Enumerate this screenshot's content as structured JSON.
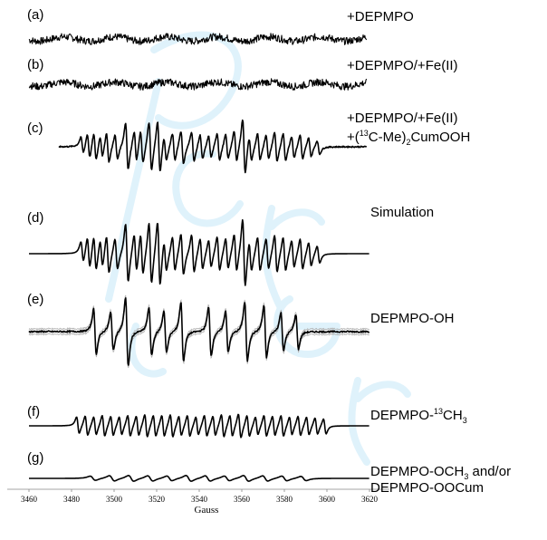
{
  "chart_data": {
    "type": "line",
    "title": "",
    "xlabel": "Gauss",
    "ylabel": "",
    "xlim": [
      3460,
      3620
    ],
    "xticks": [
      3460,
      3480,
      3500,
      3520,
      3540,
      3560,
      3580,
      3600,
      3620
    ],
    "grid": false,
    "legend": "none",
    "series": [
      {
        "letter": "(a)",
        "label": "+DEPMPO",
        "kind": "noise",
        "centers": [],
        "amps": []
      },
      {
        "letter": "(b)",
        "label": "+DEPMPO/+Fe(II)",
        "kind": "noise",
        "centers": [],
        "amps": []
      },
      {
        "letter": "(c)",
        "label": "+DEPMPO/+Fe(II)",
        "label2_parts": [
          "+(",
          "13",
          "C-Me)",
          "2",
          "CumOOH"
        ],
        "kind": "spectrum",
        "centers": [
          3485,
          3488,
          3491,
          3494,
          3497,
          3501,
          3506,
          3510,
          3513,
          3517,
          3521,
          3524,
          3528,
          3532,
          3537,
          3541,
          3545,
          3549,
          3553,
          3557,
          3561,
          3564,
          3568,
          3572,
          3576,
          3580,
          3584,
          3588,
          3592,
          3596
        ],
        "amps": [
          0.3,
          0.45,
          0.5,
          0.4,
          0.55,
          0.45,
          0.85,
          0.55,
          0.6,
          0.9,
          0.95,
          0.45,
          0.5,
          0.6,
          0.55,
          0.45,
          0.4,
          0.5,
          0.45,
          0.55,
          1.0,
          0.45,
          0.5,
          0.45,
          0.55,
          0.5,
          0.4,
          0.45,
          0.35,
          0.25
        ]
      },
      {
        "letter": "(d)",
        "label": "Simulation",
        "kind": "spectrum",
        "centers": [
          3485,
          3488,
          3491,
          3494,
          3497,
          3501,
          3506,
          3510,
          3513,
          3517,
          3521,
          3524,
          3528,
          3532,
          3537,
          3541,
          3545,
          3549,
          3553,
          3557,
          3561,
          3564,
          3568,
          3572,
          3576,
          3580,
          3584,
          3588,
          3592,
          3596
        ],
        "amps": [
          0.3,
          0.45,
          0.5,
          0.4,
          0.55,
          0.45,
          0.85,
          0.55,
          0.6,
          0.9,
          0.95,
          0.45,
          0.5,
          0.6,
          0.55,
          0.45,
          0.4,
          0.5,
          0.45,
          0.55,
          1.0,
          0.45,
          0.5,
          0.45,
          0.55,
          0.5,
          0.4,
          0.45,
          0.35,
          0.25
        ]
      },
      {
        "letter": "(e)",
        "label": "DEPMPO-OH",
        "kind": "spectrum",
        "centers": [
          3491,
          3499,
          3506,
          3517,
          3524,
          3532,
          3545,
          3553,
          3562,
          3571,
          3579,
          3586
        ],
        "amps": [
          0.65,
          0.55,
          1.0,
          0.7,
          0.6,
          0.85,
          0.7,
          0.6,
          0.85,
          0.75,
          0.55,
          0.5
        ]
      },
      {
        "letter": "(f)",
        "label_parts": [
          "DEPMPO-",
          "13",
          "CH",
          "3"
        ],
        "kind": "spectrum",
        "centers": [
          3483,
          3487,
          3491,
          3495,
          3499,
          3503,
          3507,
          3511,
          3515,
          3519,
          3523,
          3527,
          3531,
          3535,
          3539,
          3543,
          3547,
          3551,
          3555,
          3559,
          3563,
          3567,
          3571,
          3575,
          3579,
          3583,
          3587,
          3591,
          3595,
          3599
        ],
        "amps": [
          0.55,
          0.65,
          0.6,
          0.7,
          0.65,
          0.6,
          0.7,
          0.65,
          0.75,
          0.7,
          0.7,
          0.75,
          0.65,
          0.7,
          0.6,
          0.7,
          0.65,
          0.75,
          0.7,
          0.8,
          0.7,
          0.6,
          0.7,
          0.65,
          0.7,
          0.6,
          0.65,
          0.6,
          0.55,
          0.5
        ]
      },
      {
        "letter": "(g)",
        "label_parts": [
          "DEPMPO-OCH",
          "3",
          " and/or"
        ],
        "label2": "DEPMPO-OOCum",
        "kind": "spectrum",
        "centers": [
          3490,
          3499,
          3508,
          3517,
          3526,
          3535,
          3544,
          3553,
          3562,
          3571,
          3580,
          3589
        ],
        "amps": [
          0.4,
          0.5,
          0.55,
          0.5,
          0.45,
          0.55,
          0.5,
          0.45,
          0.55,
          0.5,
          0.45,
          0.4
        ]
      }
    ]
  }
}
